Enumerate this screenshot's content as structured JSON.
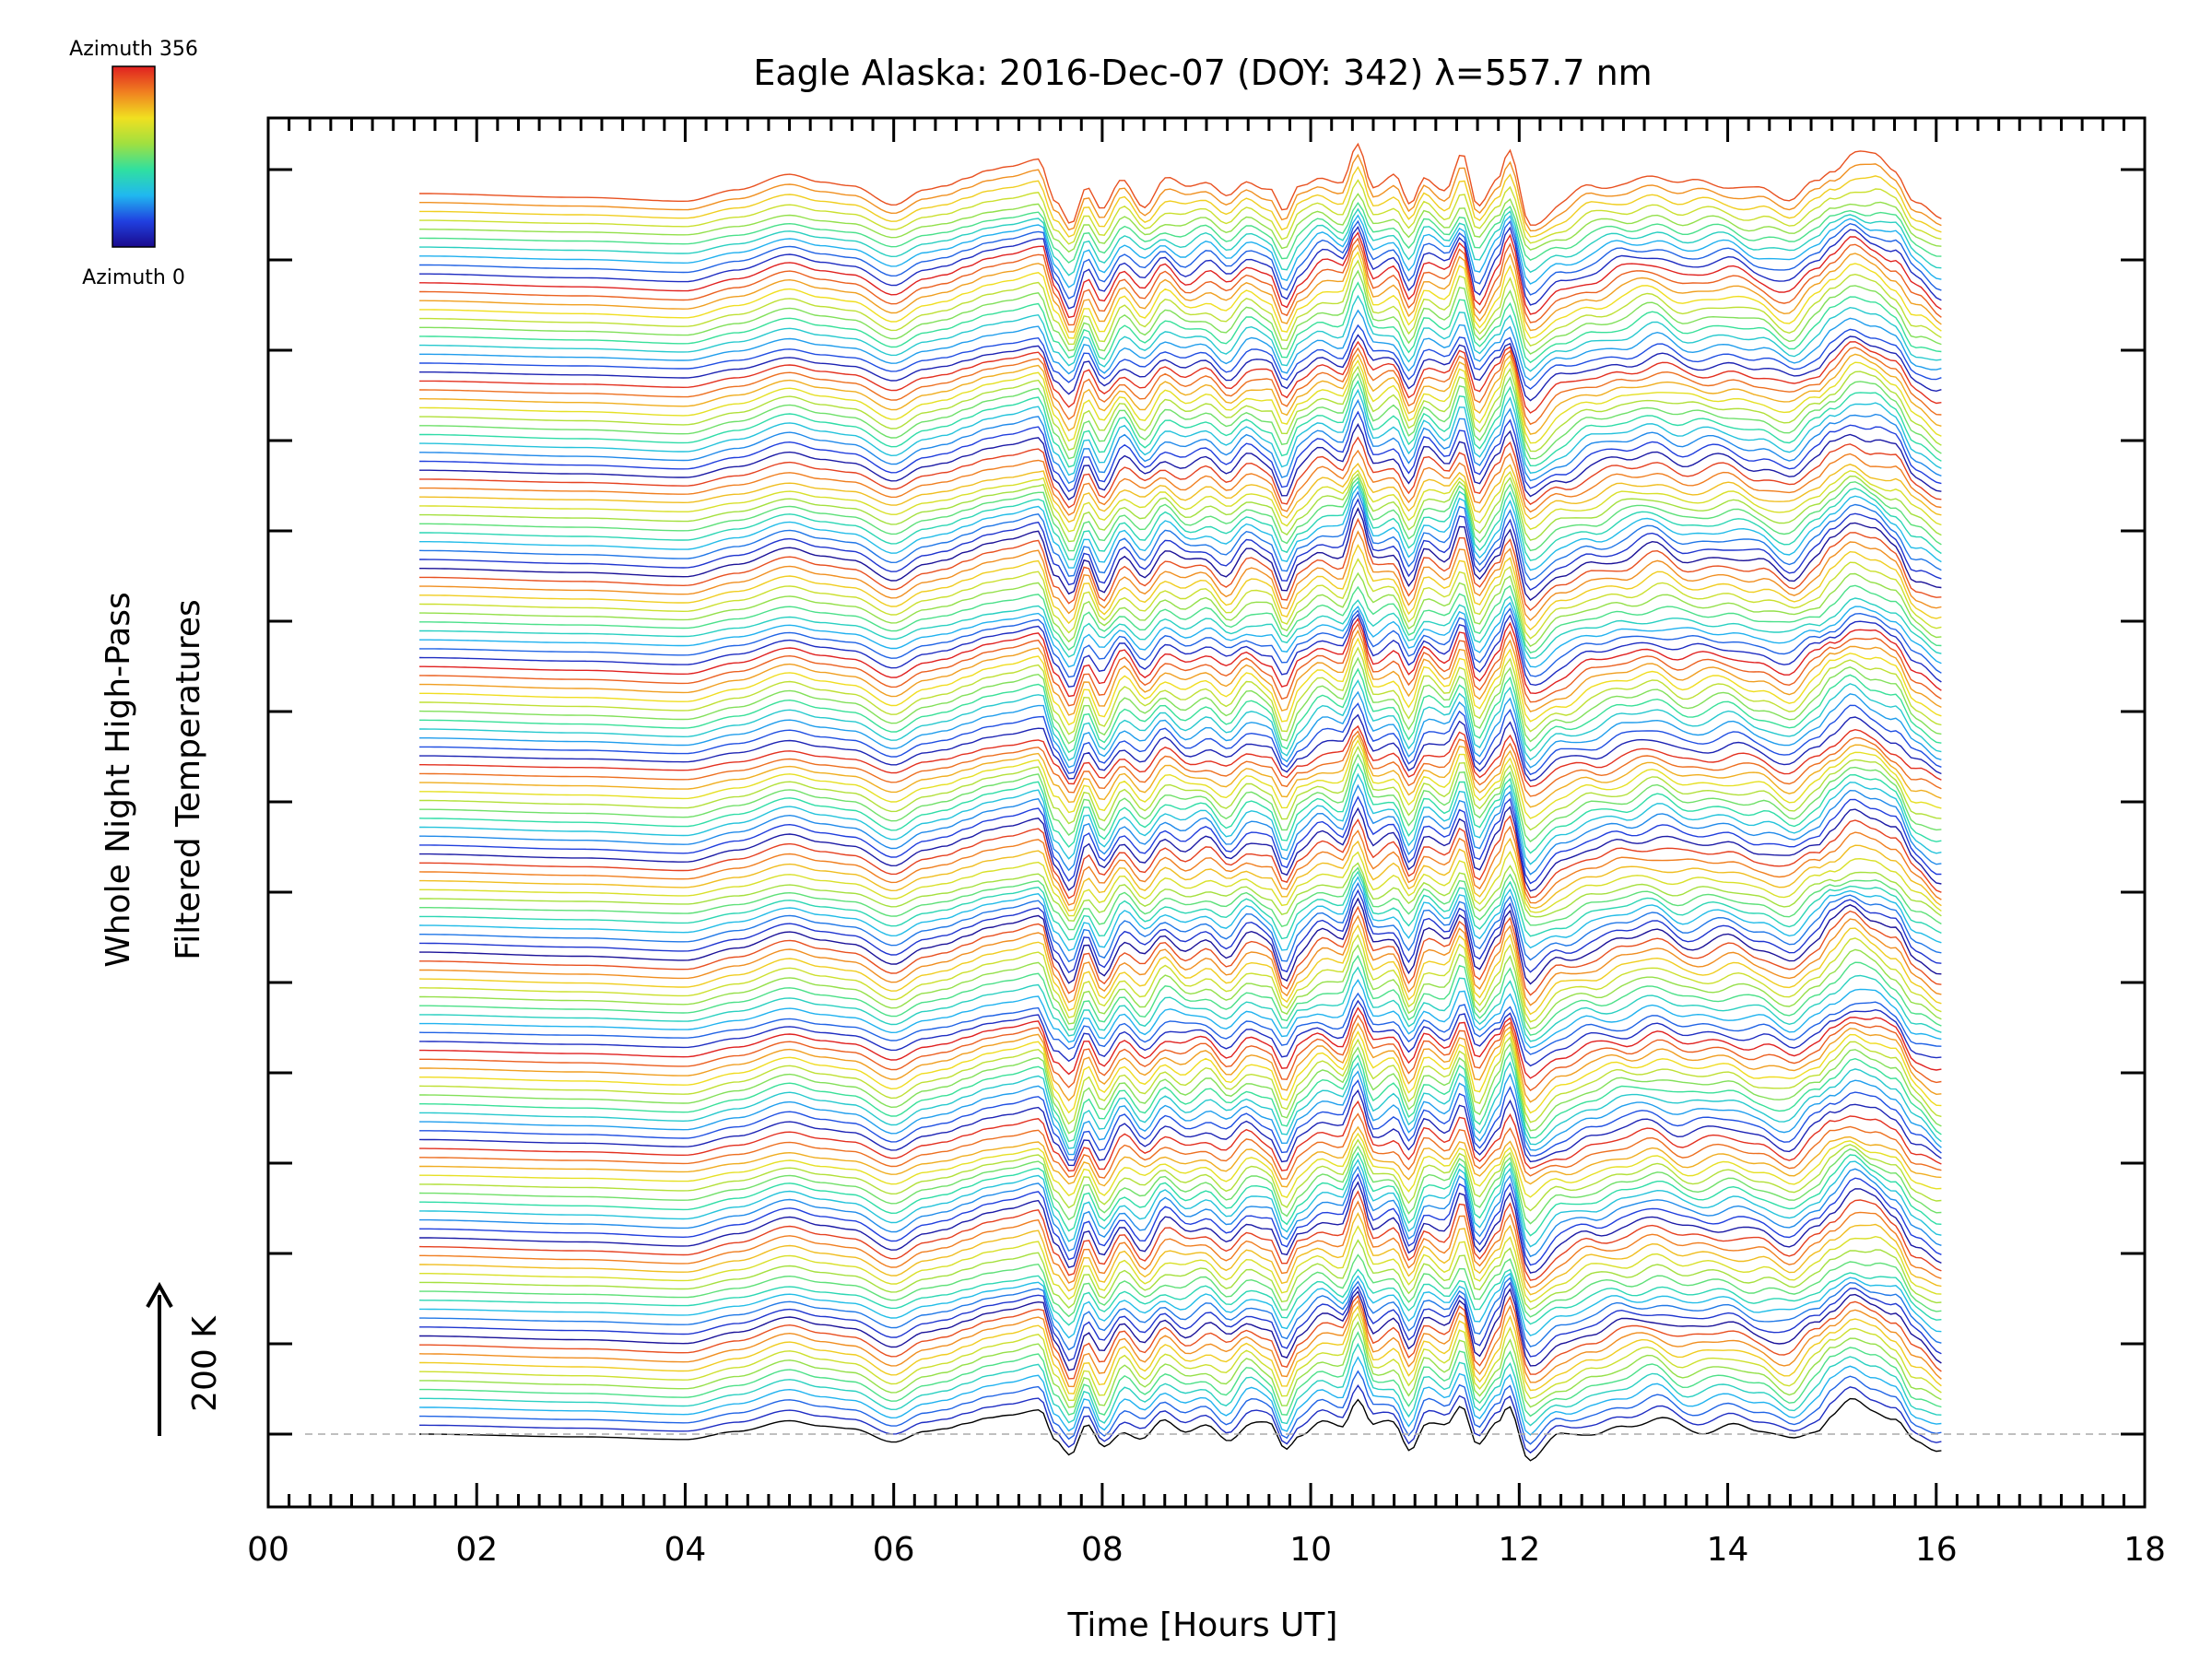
{
  "chart_data": {
    "type": "line",
    "title": "Eagle Alaska: 2016-Dec-07 (DOY: 342) λ=557.7 nm",
    "xlabel": "Time [Hours UT]",
    "ylabel": [
      "Whole Night High-Pass",
      "Filtered Temperatures"
    ],
    "xlim": [
      0,
      18
    ],
    "x_tick_labels": [
      "00",
      "02",
      "04",
      "06",
      "08",
      "10",
      "12",
      "14",
      "16",
      "18"
    ],
    "scale_bar_label": "200 K",
    "colorbar": {
      "top_label": "Azimuth 356",
      "bottom_label": "Azimuth 0",
      "colormap": "rainbow",
      "colors": [
        "#1a0a8c",
        "#2040e0",
        "#20b8f0",
        "#30e0a0",
        "#a0e040",
        "#f0e020",
        "#f08020",
        "#e02020"
      ]
    },
    "baseline_dashed": true,
    "grid": false,
    "time_range_hours": [
      1.45,
      16.05
    ],
    "num_traces": 140,
    "reference_signal": {
      "x": [
        1.45,
        3.0,
        4.0,
        4.5,
        5.0,
        5.3,
        5.6,
        6.0,
        6.3,
        6.5,
        6.7,
        6.9,
        7.1,
        7.4,
        7.55,
        7.7,
        7.85,
        8.0,
        8.2,
        8.4,
        8.6,
        8.8,
        9.0,
        9.2,
        9.4,
        9.6,
        9.75,
        9.9,
        10.1,
        10.3,
        10.45,
        10.6,
        10.8,
        10.95,
        11.1,
        11.3,
        11.45,
        11.6,
        11.8,
        11.9,
        12.1,
        12.4,
        12.7,
        13.0,
        13.3,
        13.6,
        14.0,
        14.3,
        14.6,
        14.85,
        15.0,
        15.2,
        15.4,
        15.6,
        15.8,
        16.05
      ],
      "y": [
        0,
        -5,
        -10,
        5,
        25,
        15,
        10,
        -15,
        5,
        10,
        20,
        30,
        35,
        45,
        -10,
        -40,
        10,
        -25,
        15,
        -10,
        20,
        5,
        15,
        -5,
        20,
        10,
        -30,
        5,
        25,
        15,
        65,
        10,
        20,
        -20,
        25,
        10,
        50,
        -20,
        20,
        55,
        -40,
        -10,
        5,
        15,
        25,
        10,
        15,
        5,
        -10,
        15,
        35,
        55,
        45,
        30,
        -10,
        -30
      ]
    }
  }
}
